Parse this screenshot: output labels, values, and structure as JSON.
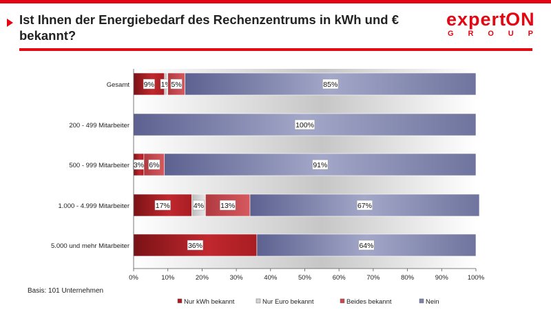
{
  "header": {
    "title": "Ist Ihnen der Energiebedarf des Rechenzentrums in kWh und € bekannt?",
    "logo_text": "experton",
    "logo_sub": [
      "G",
      "R",
      "O",
      "U",
      "P"
    ]
  },
  "footnote": "Basis: 101 Unternehmen",
  "colors": {
    "accent": "#e30613",
    "nur_kwh": "#a81d22",
    "nur_euro": "#d4d4d4",
    "beides": "#c8484f",
    "nein": "#7d82a8"
  },
  "chart_data": {
    "type": "bar",
    "orientation": "horizontal",
    "stacked": true,
    "categories": [
      "Gesamt",
      "200 - 499 Mitarbeiter",
      "500 - 999 Mitarbeiter",
      "1.000 - 4.999 Mitarbeiter",
      "5.000 und mehr Mitarbeiter"
    ],
    "series": [
      {
        "name": "Nur kWh bekannt",
        "values": [
          9,
          0,
          3,
          17,
          36
        ],
        "color": "#a81d22"
      },
      {
        "name": "Nur Euro bekannt",
        "values": [
          1,
          0,
          0,
          4,
          0
        ],
        "color": "#d4d4d4"
      },
      {
        "name": "Beides bekannt",
        "values": [
          5,
          0,
          6,
          13,
          0
        ],
        "color": "#c8484f"
      },
      {
        "name": "Nein",
        "values": [
          85,
          100,
          91,
          67,
          64
        ],
        "color": "#7d82a8"
      }
    ],
    "value_suffix": "%",
    "xlim": [
      0,
      100
    ],
    "xticks": [
      "0%",
      "10%",
      "20%",
      "30%",
      "40%",
      "50%",
      "60%",
      "70%",
      "80%",
      "90%",
      "100%"
    ],
    "legend_position": "bottom",
    "grid": false
  }
}
